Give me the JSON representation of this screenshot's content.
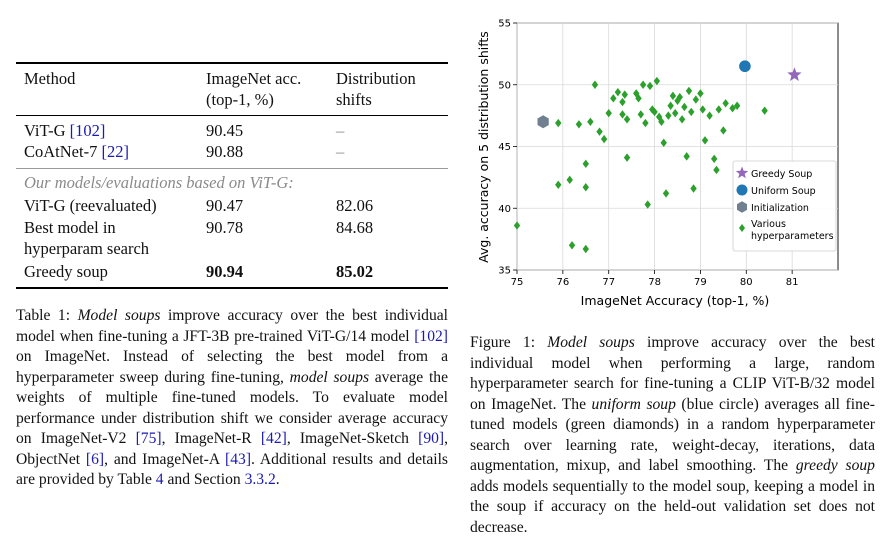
{
  "table": {
    "header": {
      "method": "Method",
      "imagenet_l1": "ImageNet acc.",
      "imagenet_l2": "(top-1, %)",
      "shifts_l1": "Distribution",
      "shifts_l2": "shifts"
    },
    "rows": [
      {
        "method": "ViT-G ",
        "cite": "[102]",
        "imagenet": "90.45",
        "shifts": "–"
      },
      {
        "method": "CoAtNet-7 ",
        "cite": "[22]",
        "imagenet": "90.88",
        "shifts": "–"
      }
    ],
    "section_label": "Our models/evaluations based on ViT-G:",
    "rows2": [
      {
        "method": "ViT-G (reevaluated)",
        "imagenet": "90.47",
        "shifts": "82.06"
      },
      {
        "method_l1": "Best model in",
        "method_l2": "hyperparam search",
        "imagenet": "90.78",
        "shifts": "84.68"
      },
      {
        "method": "Greedy soup",
        "imagenet": "90.94",
        "shifts": "85.02"
      }
    ]
  },
  "table_caption": {
    "label": "Table 1: ",
    "t1": "Model soups",
    "t2": " improve accuracy over the best individual model when fine-tuning a JFT-3B pre-trained ViT-G/14 model ",
    "c1": "[102]",
    "t3": " on ImageNet. Instead of selecting the best model from a hyperparameter sweep during fine-tuning, ",
    "t4": "model soups",
    "t5": " average the weights of multiple fine-tuned models. To evaluate model performance under distribution shift we consider average accuracy on ImageNet-V2 ",
    "c2": "[75]",
    "t6": ", ImageNet-R ",
    "c3": "[42]",
    "t7": ", ImageNet-Sketch ",
    "c4": "[90]",
    "t8": ", ObjectNet ",
    "c5": "[6]",
    "t9": ", and ImageNet-A ",
    "c6": "[43]",
    "t10": ". Additional results and details are provided by Table ",
    "c7": "4",
    "t11": " and Section ",
    "c8": "3.3.2",
    "t12": "."
  },
  "figure_caption": {
    "label": "Figure 1: ",
    "t1": "Model soups",
    "t2": " improve accuracy over the best individual model when performing a large, random hyperparameter search for fine-tuning a CLIP ViT-B/32 model on ImageNet. The ",
    "t3": "uniform soup",
    "t4": " (blue circle) averages all fine-tuned models (green diamonds) in a random hyperparameter search over learning rate, weight-decay, iterations, data augmentation, mixup, and label smoothing. The ",
    "t5": "greedy soup",
    "t6": " adds models sequentially to the model soup, keeping a model in the soup if accuracy on the held-out validation set does not decrease."
  },
  "chart_data": {
    "type": "scatter",
    "title": "",
    "xlabel": "ImageNet Accuracy (top-1, %)",
    "ylabel": "Avg. accuracy on 5 distribution shifts",
    "xlim": [
      75,
      82
    ],
    "ylim": [
      35,
      55
    ],
    "xticks": [
      "75",
      "76",
      "77",
      "78",
      "79",
      "80",
      "81"
    ],
    "yticks": [
      "35",
      "40",
      "45",
      "50",
      "55"
    ],
    "grid": true,
    "legend_position": "right",
    "colors": {
      "greedy": "#9467bd",
      "uniform": "#1f77b4",
      "init": "#708090",
      "various": "#2ca02c"
    },
    "series": [
      {
        "name": "Greedy Soup",
        "marker": "star",
        "points": [
          [
            81.05,
            50.8
          ]
        ]
      },
      {
        "name": "Uniform Soup",
        "marker": "circle",
        "points": [
          [
            79.97,
            51.5
          ]
        ]
      },
      {
        "name": "Initialization",
        "marker": "hexagon",
        "points": [
          [
            75.57,
            47.0
          ]
        ]
      },
      {
        "name_l1": "Various",
        "name_l2": "hyperparameters",
        "marker": "diamond",
        "points": [
          [
            75.0,
            38.6
          ],
          [
            75.9,
            46.9
          ],
          [
            75.9,
            41.9
          ],
          [
            76.15,
            42.3
          ],
          [
            76.2,
            37.0
          ],
          [
            76.35,
            46.8
          ],
          [
            76.5,
            43.6
          ],
          [
            76.5,
            41.7
          ],
          [
            76.5,
            36.7
          ],
          [
            76.6,
            47.0
          ],
          [
            76.7,
            50.0
          ],
          [
            76.8,
            46.2
          ],
          [
            76.9,
            45.6
          ],
          [
            77.0,
            47.7
          ],
          [
            77.1,
            48.9
          ],
          [
            77.2,
            49.4
          ],
          [
            77.3,
            48.6
          ],
          [
            77.3,
            47.6
          ],
          [
            77.35,
            49.2
          ],
          [
            77.4,
            47.2
          ],
          [
            77.4,
            44.1
          ],
          [
            77.6,
            49.3
          ],
          [
            77.65,
            48.9
          ],
          [
            77.7,
            47.6
          ],
          [
            77.75,
            50.0
          ],
          [
            77.8,
            46.9
          ],
          [
            77.85,
            40.3
          ],
          [
            77.9,
            49.9
          ],
          [
            77.95,
            48.0
          ],
          [
            78.0,
            47.8
          ],
          [
            78.05,
            50.3
          ],
          [
            78.1,
            47.4
          ],
          [
            78.15,
            47.0
          ],
          [
            78.2,
            45.3
          ],
          [
            78.25,
            41.2
          ],
          [
            78.3,
            47.5
          ],
          [
            78.35,
            48.3
          ],
          [
            78.4,
            49.1
          ],
          [
            78.45,
            47.7
          ],
          [
            78.5,
            48.7
          ],
          [
            78.55,
            49.0
          ],
          [
            78.6,
            47.2
          ],
          [
            78.65,
            48.2
          ],
          [
            78.7,
            44.2
          ],
          [
            78.75,
            49.5
          ],
          [
            78.8,
            47.8
          ],
          [
            78.85,
            41.6
          ],
          [
            78.9,
            48.8
          ],
          [
            79.0,
            49.3
          ],
          [
            79.05,
            48.0
          ],
          [
            79.1,
            45.5
          ],
          [
            79.2,
            47.5
          ],
          [
            79.3,
            44.0
          ],
          [
            79.35,
            43.1
          ],
          [
            79.4,
            48.0
          ],
          [
            79.5,
            46.3
          ],
          [
            79.55,
            48.5
          ],
          [
            79.7,
            48.1
          ],
          [
            79.8,
            48.3
          ],
          [
            80.4,
            47.9
          ]
        ]
      }
    ]
  }
}
